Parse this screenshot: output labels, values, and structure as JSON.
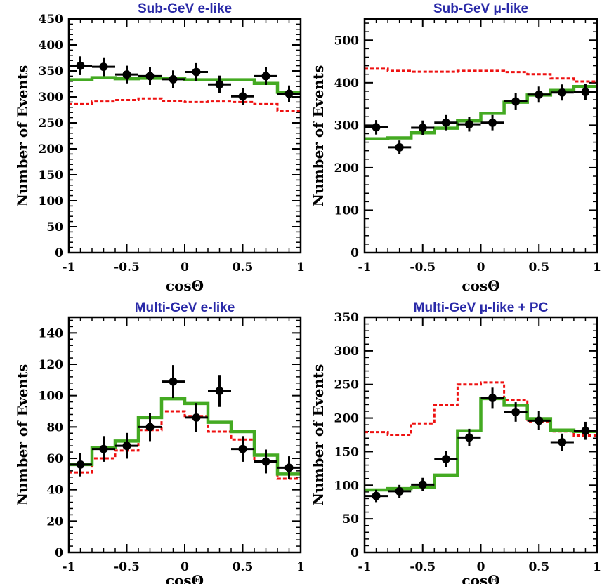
{
  "colors": {
    "mc": "#44aa22",
    "no_osc": "#ee1111",
    "data": "#000000",
    "title": "#2a2aa8"
  },
  "chart_data": [
    {
      "type": "line",
      "title": "Sub-GeV e-like",
      "xlabel": "cosΘ",
      "ylabel": "Number of Events",
      "xlim": [
        -1,
        1
      ],
      "ylim": [
        0,
        450
      ],
      "xticks": [
        -1,
        -0.5,
        0,
        0.5,
        1
      ],
      "xtick_labels": [
        "-1",
        "-0.5",
        "0",
        "0.5",
        "1"
      ],
      "yticks": [
        0,
        50,
        100,
        150,
        200,
        250,
        300,
        350,
        400,
        450
      ],
      "ytick_labels": [
        "0",
        "50",
        "100",
        "150",
        "200",
        "250",
        "300",
        "350",
        "400",
        "450"
      ],
      "bin_edges": [
        -1,
        -0.8,
        -0.6,
        -0.4,
        -0.2,
        0,
        0.2,
        0.4,
        0.6,
        0.8,
        1
      ],
      "series": [
        {
          "style": "step",
          "color": "#ee1111",
          "dashed": true,
          "values": [
            286,
            291,
            294,
            297,
            292,
            290,
            291,
            290,
            286,
            273
          ]
        },
        {
          "style": "step",
          "color": "#44aa22",
          "dashed": false,
          "values": [
            333,
            337,
            335,
            336,
            336,
            333,
            333,
            333,
            326,
            309
          ]
        },
        {
          "style": "points",
          "color": "#000000",
          "values": [
            360,
            358,
            343,
            340,
            334,
            348,
            324,
            301,
            340,
            306
          ],
          "errors": [
            18,
            18,
            17,
            17,
            17,
            17,
            17,
            16,
            17,
            16
          ]
        }
      ]
    },
    {
      "type": "line",
      "title": "Sub-GeV μ-like",
      "xlabel": "cosΘ",
      "ylabel": "Number of Events",
      "xlim": [
        -1,
        1
      ],
      "ylim": [
        0,
        550
      ],
      "xticks": [
        -1,
        -0.5,
        0,
        0.5,
        1
      ],
      "xtick_labels": [
        "-1",
        "-0.5",
        "0",
        "0.5",
        "1"
      ],
      "yticks": [
        0,
        100,
        200,
        300,
        400,
        500
      ],
      "ytick_labels": [
        "0",
        "100",
        "200",
        "300",
        "400",
        "500"
      ],
      "bin_edges": [
        -1,
        -0.8,
        -0.6,
        -0.4,
        -0.2,
        0,
        0.2,
        0.4,
        0.6,
        0.8,
        1
      ],
      "series": [
        {
          "style": "step",
          "color": "#ee1111",
          "dashed": true,
          "values": [
            433,
            428,
            426,
            426,
            428,
            428,
            425,
            420,
            410,
            403
          ]
        },
        {
          "style": "step",
          "color": "#44aa22",
          "dashed": false,
          "values": [
            268,
            270,
            282,
            293,
            310,
            328,
            354,
            371,
            382,
            391
          ]
        },
        {
          "style": "points",
          "color": "#000000",
          "values": [
            295,
            248,
            294,
            306,
            302,
            306,
            356,
            372,
            377,
            378
          ],
          "errors": [
            17,
            16,
            17,
            18,
            17,
            18,
            19,
            19,
            19,
            19
          ]
        }
      ]
    },
    {
      "type": "line",
      "title": "Multi-GeV e-like",
      "xlabel": "cosΘ",
      "ylabel": "Number of Events",
      "xlim": [
        -1,
        1
      ],
      "ylim": [
        0,
        150
      ],
      "xticks": [
        -1,
        -0.5,
        0,
        0.5,
        1
      ],
      "xtick_labels": [
        "-1",
        "-0.5",
        "0",
        "0.5",
        "1"
      ],
      "yticks": [
        0,
        20,
        40,
        60,
        80,
        100,
        120,
        140
      ],
      "ytick_labels": [
        "0",
        "20",
        "40",
        "60",
        "80",
        "100",
        "120",
        "140"
      ],
      "bin_edges": [
        -1,
        -0.8,
        -0.6,
        -0.4,
        -0.2,
        0,
        0.2,
        0.4,
        0.6,
        0.8,
        1
      ],
      "series": [
        {
          "style": "step",
          "color": "#ee1111",
          "dashed": true,
          "values": [
            51,
            60,
            65,
            78,
            90,
            87,
            77,
            72,
            58,
            47
          ]
        },
        {
          "style": "step",
          "color": "#44aa22",
          "dashed": false,
          "values": [
            56,
            67,
            71,
            86,
            98,
            95,
            83,
            77,
            62,
            50
          ]
        },
        {
          "style": "points",
          "color": "#000000",
          "values": [
            56,
            66,
            68,
            80,
            109,
            86,
            103,
            66,
            58,
            54
          ],
          "errors": [
            7.5,
            8.2,
            8.2,
            9,
            10.5,
            9.3,
            10.2,
            8.2,
            7.6,
            7.3
          ]
        }
      ]
    },
    {
      "type": "line",
      "title": "Multi-GeV μ-like + PC",
      "xlabel": "cosΘ",
      "ylabel": "Number of Events",
      "xlim": [
        -1,
        1
      ],
      "ylim": [
        0,
        350
      ],
      "xticks": [
        -1,
        -0.5,
        0,
        0.5,
        1
      ],
      "xtick_labels": [
        "-1",
        "-0.5",
        "0",
        "0.5",
        "1"
      ],
      "yticks": [
        0,
        50,
        100,
        150,
        200,
        250,
        300,
        350
      ],
      "ytick_labels": [
        "0",
        "50",
        "100",
        "150",
        "200",
        "250",
        "300",
        "350"
      ],
      "bin_edges": [
        -1,
        -0.8,
        -0.6,
        -0.4,
        -0.2,
        0,
        0.2,
        0.4,
        0.6,
        0.8,
        1
      ],
      "series": [
        {
          "style": "step",
          "color": "#ee1111",
          "dashed": true,
          "values": [
            179,
            175,
            192,
            219,
            250,
            253,
            227,
            195,
            180,
            174
          ]
        },
        {
          "style": "step",
          "color": "#44aa22",
          "dashed": false,
          "values": [
            93,
            95,
            97,
            115,
            181,
            229,
            219,
            199,
            182,
            180
          ]
        },
        {
          "style": "points",
          "color": "#000000",
          "values": [
            84,
            91,
            101,
            139,
            171,
            230,
            209,
            196,
            164,
            181
          ],
          "errors": [
            9.2,
            9.5,
            10,
            11.8,
            13,
            15.2,
            14.5,
            14,
            12.8,
            13.4
          ]
        }
      ]
    }
  ]
}
